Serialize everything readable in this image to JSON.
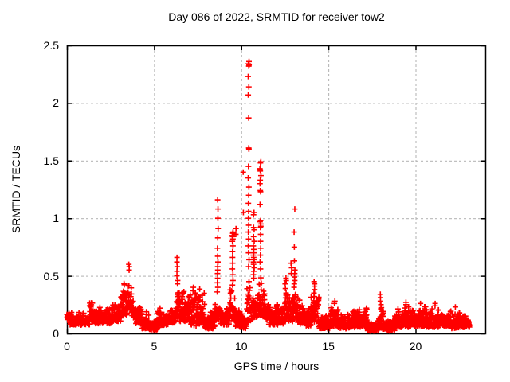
{
  "title": "Day 086 of 2022, SRMTID for receiver tow2",
  "axes": {
    "xlabel": "GPS time / hours",
    "ylabel": "SRMTID / TECUs",
    "xlim": [
      0,
      24
    ],
    "ylim": [
      0,
      2.5
    ],
    "xticks": [
      0,
      5,
      10,
      15,
      20
    ],
    "yticks": [
      0,
      0.5,
      1,
      1.5,
      2,
      2.5
    ],
    "grid": true,
    "grid_style": "dashed"
  },
  "colors": {
    "marker": "#ff0000",
    "grid": "#b0b0b0",
    "axis": "#000000",
    "background": "#ffffff",
    "text": "#000000"
  },
  "chart_data": {
    "type": "scatter",
    "series_name": "SRMTID for receiver tow2",
    "marker": "plus",
    "marker_size_px": 7,
    "title": "Day 086 of 2022, SRMTID for receiver tow2",
    "xlabel": "GPS time / hours",
    "ylabel": "SRMTID / TECUs",
    "xlim": [
      0,
      24
    ],
    "ylim": [
      0,
      2.5
    ],
    "legend": "none",
    "sample_interval_hours": 0.00833,
    "data_time_span_hours": [
      0,
      23.1
    ],
    "max_point": {
      "t": 10.42,
      "value": 2.36
    },
    "baseline_band_segments_t0_t1_lo_hi": [
      [
        0.0,
        0.15,
        0.12,
        0.27
      ],
      [
        0.15,
        1.3,
        0.07,
        0.2
      ],
      [
        1.3,
        1.6,
        0.1,
        0.27
      ],
      [
        1.6,
        2.6,
        0.08,
        0.23
      ],
      [
        2.6,
        3.1,
        0.1,
        0.3
      ],
      [
        3.1,
        3.45,
        0.15,
        0.45
      ],
      [
        3.45,
        3.7,
        0.2,
        0.58
      ],
      [
        3.7,
        3.95,
        0.13,
        0.38
      ],
      [
        3.95,
        4.3,
        0.08,
        0.3
      ],
      [
        4.3,
        4.7,
        0.04,
        0.2
      ],
      [
        4.7,
        5.2,
        0.03,
        0.14
      ],
      [
        5.2,
        5.8,
        0.07,
        0.22
      ],
      [
        5.8,
        6.25,
        0.09,
        0.25
      ],
      [
        6.25,
        6.45,
        0.12,
        0.4
      ],
      [
        6.45,
        7.1,
        0.1,
        0.42
      ],
      [
        7.1,
        7.9,
        0.06,
        0.4
      ],
      [
        7.9,
        8.5,
        0.04,
        0.2
      ],
      [
        8.5,
        8.8,
        0.12,
        0.35
      ],
      [
        8.8,
        9.35,
        0.07,
        0.27
      ],
      [
        9.35,
        9.65,
        0.12,
        0.4
      ],
      [
        9.65,
        10.1,
        0.05,
        0.22
      ],
      [
        10.1,
        10.32,
        0.04,
        0.16
      ],
      [
        10.32,
        10.6,
        0.1,
        0.55
      ],
      [
        10.6,
        10.95,
        0.12,
        0.5
      ],
      [
        10.95,
        11.25,
        0.15,
        0.55
      ],
      [
        11.25,
        11.55,
        0.12,
        0.42
      ],
      [
        11.55,
        12.1,
        0.07,
        0.26
      ],
      [
        12.1,
        12.5,
        0.08,
        0.3
      ],
      [
        12.5,
        12.95,
        0.1,
        0.35
      ],
      [
        12.95,
        13.2,
        0.12,
        0.45
      ],
      [
        13.2,
        13.6,
        0.08,
        0.32
      ],
      [
        13.6,
        14.0,
        0.06,
        0.24
      ],
      [
        14.0,
        14.45,
        0.1,
        0.38
      ],
      [
        14.45,
        15.1,
        0.04,
        0.18
      ],
      [
        15.1,
        15.55,
        0.06,
        0.26
      ],
      [
        15.55,
        16.2,
        0.04,
        0.18
      ],
      [
        16.2,
        17.2,
        0.05,
        0.22
      ],
      [
        17.2,
        17.9,
        0.02,
        0.12
      ],
      [
        17.9,
        18.15,
        0.04,
        0.25
      ],
      [
        18.15,
        18.8,
        0.02,
        0.13
      ],
      [
        18.8,
        19.7,
        0.05,
        0.24
      ],
      [
        19.7,
        20.6,
        0.06,
        0.25
      ],
      [
        20.6,
        21.3,
        0.05,
        0.24
      ],
      [
        21.3,
        22.0,
        0.06,
        0.21
      ],
      [
        22.0,
        22.55,
        0.04,
        0.21
      ],
      [
        22.55,
        23.1,
        0.05,
        0.17
      ]
    ],
    "spike_columns": [
      {
        "t": 3.55,
        "values": [
          0.6,
          0.58,
          0.55
        ]
      },
      {
        "t": 6.33,
        "values": [
          0.66,
          0.62,
          0.58,
          0.54,
          0.5,
          0.46,
          0.43
        ]
      },
      {
        "t": 7.25,
        "values": [
          0.4,
          0.37
        ]
      },
      {
        "t": 8.65,
        "values": [
          1.16,
          1.08,
          1.0,
          0.91,
          0.83,
          0.74,
          0.67,
          0.62,
          0.58,
          0.55,
          0.52,
          0.48,
          0.44,
          0.4,
          0.36
        ]
      },
      {
        "t": 9.5,
        "values": [
          0.88,
          0.87,
          0.85,
          0.84,
          0.82,
          0.8,
          0.76,
          0.71,
          0.66,
          0.61,
          0.56,
          0.51,
          0.46,
          0.42
        ]
      },
      {
        "t": 9.68,
        "values": [
          0.91,
          0.86
        ]
      },
      {
        "t": 10.14,
        "values": [
          1.4,
          1.05
        ]
      },
      {
        "t": 10.42,
        "values": [
          2.36,
          2.34,
          2.33,
          2.32,
          2.23,
          2.14,
          2.07,
          1.87,
          1.61,
          1.6,
          1.45,
          1.35,
          1.27,
          1.2,
          1.13,
          1.06,
          1.0,
          0.94,
          0.88,
          0.82,
          0.76,
          0.7,
          0.64,
          0.58
        ]
      },
      {
        "t": 10.72,
        "values": [
          1.05,
          1.03,
          0.92,
          0.9,
          0.84,
          0.8,
          0.76,
          0.73,
          0.7,
          0.68,
          0.66,
          0.64,
          0.62,
          0.6,
          0.57,
          0.54,
          0.51,
          0.48
        ]
      },
      {
        "t": 11.1,
        "values": [
          1.49,
          1.48,
          1.43,
          1.42,
          1.41,
          1.37,
          1.33,
          1.3,
          1.24,
          1.23,
          1.12,
          0.98,
          0.97,
          0.95,
          0.93,
          0.92,
          0.86,
          0.8,
          0.74,
          0.68,
          0.62,
          0.56
        ]
      },
      {
        "t": 12.55,
        "values": [
          0.48,
          0.46,
          0.43,
          0.39,
          0.35
        ]
      },
      {
        "t": 12.88,
        "values": [
          0.61,
          0.57,
          0.52
        ]
      },
      {
        "t": 13.05,
        "values": [
          1.08,
          0.88,
          0.75,
          0.63,
          0.55,
          0.52,
          0.49,
          0.46,
          0.43,
          0.4
        ]
      },
      {
        "t": 14.2,
        "values": [
          0.45,
          0.43,
          0.41,
          0.38,
          0.35,
          0.32
        ]
      },
      {
        "t": 15.35,
        "values": [
          0.28,
          0.26
        ]
      },
      {
        "t": 18.0,
        "values": [
          0.34,
          0.31,
          0.28,
          0.25,
          0.22
        ]
      },
      {
        "t": 19.45,
        "values": [
          0.27,
          0.25
        ]
      },
      {
        "t": 20.3,
        "values": [
          0.26
        ]
      },
      {
        "t": 21.1,
        "values": [
          0.26,
          0.24
        ]
      },
      {
        "t": 22.3,
        "values": [
          0.23
        ]
      }
    ]
  }
}
